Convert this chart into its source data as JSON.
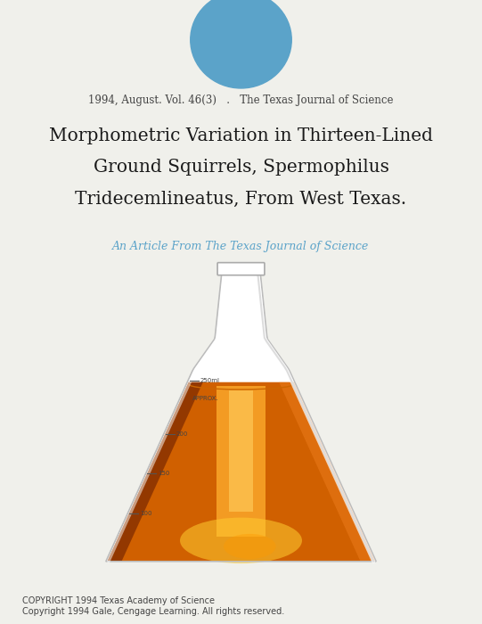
{
  "background_color": "#f0f0eb",
  "circle_color": "#5ba3c9",
  "header_text": "1994, August. Vol. 46(3)   .   The Texas Journal of Science",
  "header_color": "#444444",
  "header_fontsize": 8.5,
  "title_lines": [
    "Morphometric Variation in Thirteen-Lined",
    "Ground Squirrels, Spermophilus",
    "Tridecemlineatus, From West Texas."
  ],
  "title_color": "#1a1a1a",
  "title_fontsize": 14.5,
  "subtitle_text": "An Article From The Texas Journal of Science",
  "subtitle_color": "#5ba3c9",
  "subtitle_fontsize": 9,
  "copyright_line1": "COPYRIGHT 1994 Texas Academy of Science",
  "copyright_line2": "Copyright 1994 Gale, Cengage Learning. All rights reserved.",
  "copyright_color": "#444444",
  "copyright_fontsize": 7
}
